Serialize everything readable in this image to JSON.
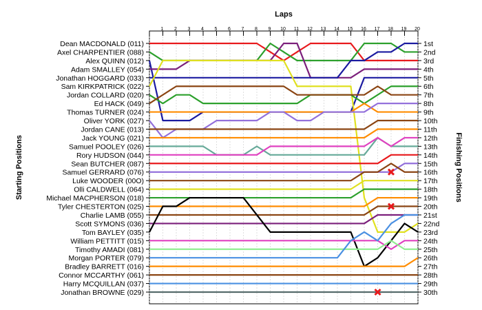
{
  "chart_data": {
    "type": "line",
    "title": "",
    "xlabel": "Laps",
    "ylabel_left": "Starting Positions",
    "ylabel_right": "Finishing Positions",
    "laps": [
      0,
      1,
      2,
      3,
      4,
      5,
      6,
      7,
      8,
      9,
      10,
      11,
      12,
      13,
      14,
      15,
      16,
      17,
      18,
      19,
      20
    ],
    "lap_tick_labels": [
      "1",
      "2",
      "3",
      "4",
      "5",
      "6",
      "7",
      "8",
      "9",
      "10",
      "11",
      "12",
      "13",
      "14",
      "15",
      "16",
      "17",
      "18",
      "19",
      "20"
    ],
    "drivers": [
      "Dean MACDONALD (011)",
      "Axel CHARPENTIER (088)",
      "Alex QUINN (012)",
      "Adam SMALLEY (054)",
      "Jonathan HOGGARD (033)",
      "Sam KIRKPATRICK (022)",
      "Jordan COLLARD (020)",
      "Ed HACK (049)",
      "Thomas TURNER (024)",
      "Oliver YORK (027)",
      "Jordan CANE (013)",
      "Jack YOUNG (021)",
      "Samuel POOLEY (026)",
      "Rory HUDSON (044)",
      "Sean BUTCHER (087)",
      "Samuel GERRARD (076)",
      "Luke WOODER (00O)",
      "Olli CALDWELL (064)",
      "Michael MACPHERSON (018)",
      "Tyler CHESTERTON (025)",
      "Charlie LAMB (055)",
      "Scott SYMONS (036)",
      "Tom BAYLEY (035)",
      "William PETTITT (015)",
      "Timothy AMADI (081)",
      "Morgan PORTER (079)",
      "Bradley BARRETT (016)",
      "Connor MCCARTHY (061)",
      "Harry MCQUILLAN (037)",
      "Jonathan BROWNE (029)"
    ],
    "finishing_labels": [
      "1st",
      "2nd",
      "3rd",
      "4th",
      "5th",
      "6th",
      "7th",
      "8th",
      "9th",
      "10th",
      "11th",
      "12th",
      "13th",
      "14th",
      "15th",
      "16th",
      "17th",
      "18th",
      "19th",
      "20th",
      "21st",
      "22nd",
      "23rd",
      "24th",
      "25th",
      "26th",
      "27th",
      "28th",
      "29th",
      "30th"
    ],
    "series": [
      {
        "driver_index": 0,
        "color": "#e8191c",
        "positions": [
          1,
          1,
          1,
          1,
          1,
          1,
          1,
          1,
          1,
          2,
          3,
          2,
          1,
          1,
          1,
          1,
          3,
          3,
          3,
          3,
          3
        ]
      },
      {
        "driver_index": 1,
        "color": "#2ca02c",
        "positions": [
          2,
          3,
          3,
          3,
          3,
          3,
          3,
          3,
          3,
          1,
          2,
          3,
          3,
          3,
          3,
          3,
          1,
          1,
          1,
          2,
          2
        ]
      },
      {
        "driver_index": 2,
        "color": "#1a1aa0",
        "positions": [
          3,
          10,
          10,
          10,
          9,
          9,
          9,
          9,
          9,
          9,
          9,
          9,
          9,
          9,
          9,
          9,
          5,
          5,
          5,
          5,
          5
        ]
      },
      {
        "driver_index": 3,
        "color": "#7b1f7b",
        "positions": [
          4,
          4,
          4,
          3,
          3,
          3,
          3,
          3,
          3,
          3,
          1,
          1,
          5,
          5,
          5,
          5,
          4,
          4,
          4,
          4,
          4
        ]
      },
      {
        "driver_index": 4,
        "color": "#1a1aa0",
        "positions": [
          5,
          5,
          5,
          5,
          5,
          5,
          5,
          5,
          5,
          5,
          5,
          5,
          5,
          5,
          5,
          3,
          3,
          2,
          2,
          1,
          1
        ]
      },
      {
        "driver_index": 5,
        "color": "#e0e020",
        "positions": [
          6,
          3,
          3,
          3,
          3,
          3,
          3,
          3,
          3,
          3,
          3,
          6,
          6,
          6,
          6,
          6,
          19,
          23,
          23,
          23,
          22
        ]
      },
      {
        "driver_index": 6,
        "color": "#2ca02c",
        "positions": [
          7,
          8,
          7,
          7,
          8,
          8,
          8,
          8,
          8,
          8,
          8,
          8,
          7,
          7,
          7,
          7,
          8,
          7,
          6,
          6,
          6
        ]
      },
      {
        "driver_index": 7,
        "color": "#8b4513",
        "positions": [
          8,
          7,
          6,
          6,
          6,
          6,
          6,
          6,
          6,
          6,
          6,
          7,
          7,
          7,
          7,
          7,
          7,
          6,
          7,
          7,
          7
        ]
      },
      {
        "driver_index": 8,
        "color": "#ff8c00",
        "positions": [
          9,
          9,
          9,
          9,
          9,
          9,
          9,
          9,
          9,
          9,
          9,
          9,
          9,
          9,
          9,
          9,
          8,
          9,
          9,
          9,
          9
        ]
      },
      {
        "driver_index": 9,
        "color": "#9370db",
        "positions": [
          10,
          12,
          11,
          11,
          11,
          10,
          10,
          10,
          10,
          9,
          9,
          10,
          10,
          9,
          9,
          9,
          9,
          8,
          8,
          8,
          8
        ]
      },
      {
        "driver_index": 10,
        "color": "#8b4513",
        "positions": [
          11,
          11,
          11,
          11,
          11,
          11,
          11,
          11,
          11,
          11,
          11,
          11,
          11,
          11,
          11,
          11,
          11,
          10,
          10,
          10,
          10
        ]
      },
      {
        "driver_index": 11,
        "color": "#ff8c00",
        "positions": [
          12,
          12,
          12,
          12,
          12,
          12,
          12,
          12,
          12,
          12,
          12,
          12,
          12,
          12,
          12,
          12,
          12,
          11,
          11,
          11,
          11
        ]
      },
      {
        "driver_index": 12,
        "color": "#66aa99",
        "positions": [
          13,
          13,
          13,
          13,
          13,
          14,
          14,
          14,
          13,
          14,
          14,
          14,
          14,
          14,
          14,
          14,
          14,
          12,
          13,
          13,
          13
        ]
      },
      {
        "driver_index": 13,
        "color": "#e040c0",
        "positions": [
          14,
          14,
          14,
          14,
          14,
          14,
          14,
          14,
          14,
          13,
          13,
          13,
          13,
          13,
          13,
          13,
          13,
          12,
          13,
          12,
          12
        ]
      },
      {
        "driver_index": 14,
        "color": "#e8191c",
        "positions": [
          15,
          15,
          15,
          15,
          15,
          15,
          15,
          15,
          15,
          15,
          15,
          15,
          15,
          15,
          15,
          15,
          15,
          15,
          14,
          14,
          14
        ]
      },
      {
        "driver_index": 15,
        "color": "#9370db",
        "positions": [
          16,
          16,
          16,
          16,
          16,
          16,
          16,
          16,
          16,
          16,
          16,
          16,
          16,
          16,
          16,
          16,
          16,
          16,
          16,
          15,
          15
        ]
      },
      {
        "driver_index": 16,
        "color": "#8b4513",
        "positions": [
          17,
          17,
          17,
          17,
          17,
          17,
          17,
          17,
          17,
          17,
          17,
          17,
          17,
          17,
          17,
          17,
          16,
          16,
          15,
          16,
          16
        ]
      },
      {
        "driver_index": 17,
        "color": "#e0e020",
        "positions": [
          18,
          18,
          18,
          18,
          18,
          18,
          18,
          18,
          18,
          18,
          18,
          18,
          18,
          18,
          18,
          18,
          17,
          17,
          17,
          17,
          17
        ]
      },
      {
        "driver_index": 18,
        "color": "#2ca02c",
        "positions": [
          19,
          19,
          19,
          19,
          19,
          19,
          19,
          19,
          19,
          19,
          19,
          19,
          19,
          19,
          19,
          19,
          18,
          18,
          18,
          18,
          18
        ]
      },
      {
        "driver_index": 19,
        "color": "#ff8c00",
        "positions": [
          20,
          20,
          20,
          20,
          20,
          20,
          20,
          20,
          20,
          20,
          20,
          20,
          20,
          20,
          20,
          20,
          20,
          19,
          19,
          19,
          19
        ]
      },
      {
        "driver_index": 20,
        "color": "#8b4513",
        "positions": [
          21,
          21,
          21,
          21,
          21,
          21,
          21,
          21,
          21,
          21,
          21,
          21,
          21,
          21,
          21,
          21,
          21,
          20,
          20,
          20,
          20
        ]
      },
      {
        "driver_index": 21,
        "color": "#7b1f7b",
        "positions": [
          22,
          22,
          22,
          22,
          22,
          22,
          22,
          22,
          22,
          22,
          22,
          22,
          22,
          22,
          22,
          22,
          22,
          21,
          21,
          21,
          21
        ]
      },
      {
        "driver_index": 22,
        "color": "#000000",
        "positions": [
          23,
          20,
          20,
          19,
          19,
          19,
          19,
          19,
          21,
          23,
          23,
          23,
          23,
          23,
          23,
          23,
          27,
          26,
          24,
          22,
          23
        ]
      },
      {
        "driver_index": 23,
        "color": "#e040c0",
        "positions": [
          24,
          24,
          24,
          24,
          24,
          24,
          24,
          24,
          24,
          24,
          24,
          24,
          24,
          24,
          24,
          24,
          24,
          24,
          25,
          24,
          24
        ]
      },
      {
        "driver_index": 24,
        "color": "#90ee90",
        "positions": [
          25,
          25,
          25,
          25,
          25,
          25,
          25,
          25,
          25,
          25,
          25,
          25,
          25,
          25,
          25,
          25,
          25,
          25,
          24,
          25,
          25
        ]
      },
      {
        "driver_index": 25,
        "color": "#4a90e2",
        "positions": [
          26,
          26,
          26,
          26,
          26,
          26,
          26,
          26,
          26,
          26,
          26,
          26,
          26,
          26,
          26,
          24,
          23,
          24,
          22,
          21,
          21
        ]
      },
      {
        "driver_index": 26,
        "color": "#ff8c00",
        "positions": [
          27,
          27,
          27,
          27,
          27,
          27,
          27,
          27,
          27,
          27,
          27,
          27,
          27,
          27,
          27,
          27,
          27,
          27,
          27,
          27,
          26
        ]
      },
      {
        "driver_index": 27,
        "color": "#8b4513",
        "positions": [
          28,
          28,
          28,
          28,
          28,
          28,
          28,
          28,
          28,
          28,
          28,
          28,
          28,
          28,
          28,
          28,
          28,
          28,
          28,
          28,
          28
        ]
      },
      {
        "driver_index": 28,
        "color": "#4a90e2",
        "positions": [
          29,
          29,
          29,
          29,
          29,
          29,
          29,
          29,
          29,
          29,
          29,
          29,
          29,
          29,
          29,
          29,
          29,
          29,
          29,
          29,
          29
        ]
      },
      {
        "driver_index": 29,
        "color": "#556b6b",
        "positions": [
          30,
          30,
          30,
          30,
          30,
          30,
          30,
          30,
          30,
          30,
          30,
          30,
          30,
          30,
          30,
          30,
          30,
          30,
          30,
          30,
          30
        ]
      }
    ],
    "retirements": [
      {
        "lap": 18,
        "position": 16
      },
      {
        "lap": 18,
        "position": 20
      },
      {
        "lap": 17,
        "position": 30
      }
    ],
    "grid": true,
    "retire_marker_color": "#e8191c"
  }
}
